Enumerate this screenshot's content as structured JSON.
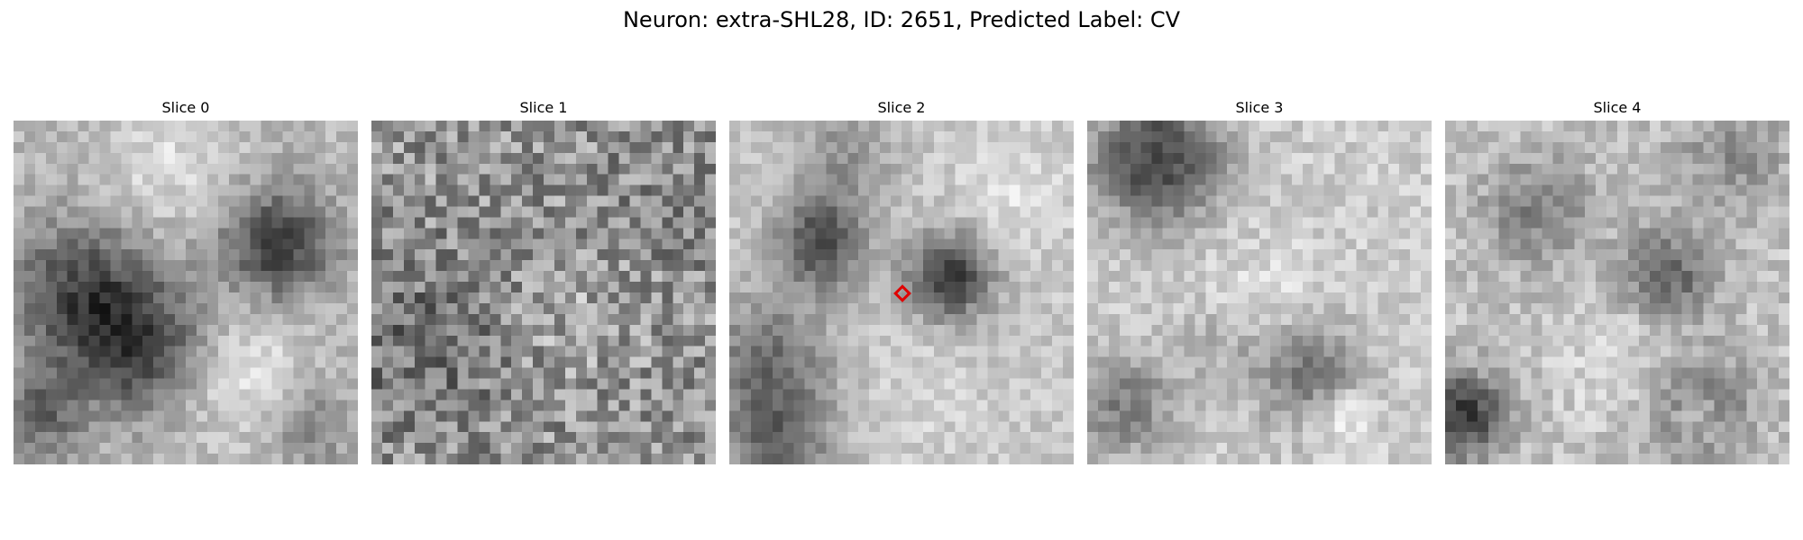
{
  "figure": {
    "title": "Neuron: extra-SHL28, ID: 2651, Predicted Label: CV"
  },
  "slices": [
    {
      "title": "Slice 0",
      "seed": 11,
      "style": "blobs0"
    },
    {
      "title": "Slice 1",
      "seed": 23,
      "style": "noise1"
    },
    {
      "title": "Slice 2",
      "seed": 37,
      "style": "blobs2",
      "has_marker": true
    },
    {
      "title": "Slice 3",
      "seed": 41,
      "style": "blobs3"
    },
    {
      "title": "Slice 4",
      "seed": 59,
      "style": "blobs4"
    }
  ],
  "marker": {
    "slice_index": 2,
    "shape": "diamond",
    "color": "#e00000"
  },
  "colormap": "gray"
}
